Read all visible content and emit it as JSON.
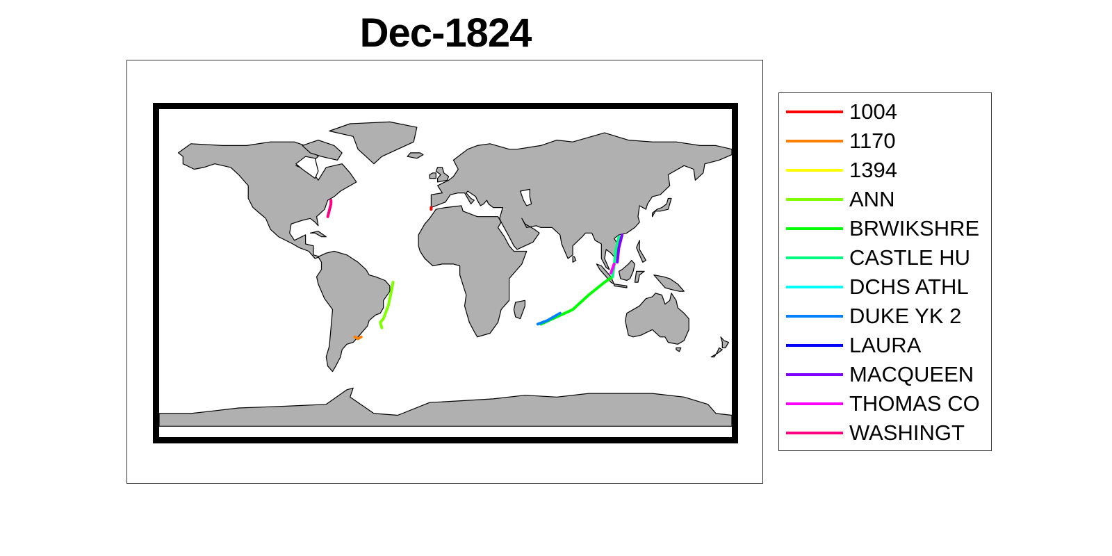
{
  "title": "Dec-1824",
  "map": {
    "projection": "equirectangular",
    "land_color": "#b0b0b0",
    "coastline_color": "#000000",
    "frame_color": "#000000"
  },
  "legend": {
    "entries": [
      {
        "label": "1004",
        "color": "#ff0000"
      },
      {
        "label": "1170",
        "color": "#ff8000"
      },
      {
        "label": "1394",
        "color": "#ffff00"
      },
      {
        "label": "ANN",
        "color": "#80ff00"
      },
      {
        "label": "BRWIKSHRE",
        "color": "#00ff00"
      },
      {
        "label": "CASTLE HU",
        "color": "#00ff80"
      },
      {
        "label": "DCHS ATHL",
        "color": "#00ffff"
      },
      {
        "label": "DUKE YK 2",
        "color": "#0080ff"
      },
      {
        "label": "LAURA",
        "color": "#0000ff"
      },
      {
        "label": "MACQUEEN",
        "color": "#8000ff"
      },
      {
        "label": "THOMAS CO",
        "color": "#ff00ff"
      },
      {
        "label": "WASHINGT",
        "color": "#ff0080"
      }
    ]
  },
  "chart_data": {
    "type": "line",
    "title": "Dec-1824",
    "xlabel": "",
    "ylabel": "",
    "xlim": [
      -180,
      180
    ],
    "ylim": [
      -90,
      90
    ],
    "series": [
      {
        "name": "1004",
        "color": "#ff0000",
        "points": [
          [
            -9,
            36
          ],
          [
            -9,
            35
          ]
        ]
      },
      {
        "name": "1170",
        "color": "#ff8000",
        "points": [
          [
            -57,
            -35
          ],
          [
            -55,
            -36
          ],
          [
            -53,
            -35
          ]
        ]
      },
      {
        "name": "ANN",
        "color": "#80ff00",
        "points": [
          [
            -33,
            -5
          ],
          [
            -34,
            -10
          ],
          [
            -36,
            -18
          ],
          [
            -39,
            -25
          ],
          [
            -41,
            -27
          ],
          [
            -40,
            -30
          ]
        ]
      },
      {
        "name": "BRWIKSHRE",
        "color": "#00ff00",
        "points": [
          [
            60,
            -28
          ],
          [
            70,
            -24
          ],
          [
            80,
            -20
          ],
          [
            90,
            -12
          ],
          [
            100,
            -5
          ],
          [
            105,
            -2
          ]
        ]
      },
      {
        "name": "CASTLE HU",
        "color": "#00ff80",
        "points": [
          [
            105,
            -2
          ],
          [
            106,
            4
          ],
          [
            107,
            12
          ],
          [
            109,
            20
          ]
        ]
      },
      {
        "name": "DUKE YK 2",
        "color": "#0080ff",
        "points": [
          [
            58,
            -28
          ],
          [
            64,
            -26
          ],
          [
            72,
            -22
          ]
        ]
      },
      {
        "name": "MACQUEEN",
        "color": "#8000ff",
        "points": [
          [
            108,
            6
          ],
          [
            109,
            14
          ],
          [
            111,
            21
          ]
        ]
      },
      {
        "name": "THOMAS CO",
        "color": "#ff00ff",
        "points": [
          [
            104,
            0
          ],
          [
            106,
            5
          ]
        ]
      },
      {
        "name": "WASHINGT",
        "color": "#ff0080",
        "points": [
          [
            -74,
            31
          ],
          [
            -72,
            38
          ],
          [
            -72,
            40
          ]
        ]
      }
    ]
  }
}
